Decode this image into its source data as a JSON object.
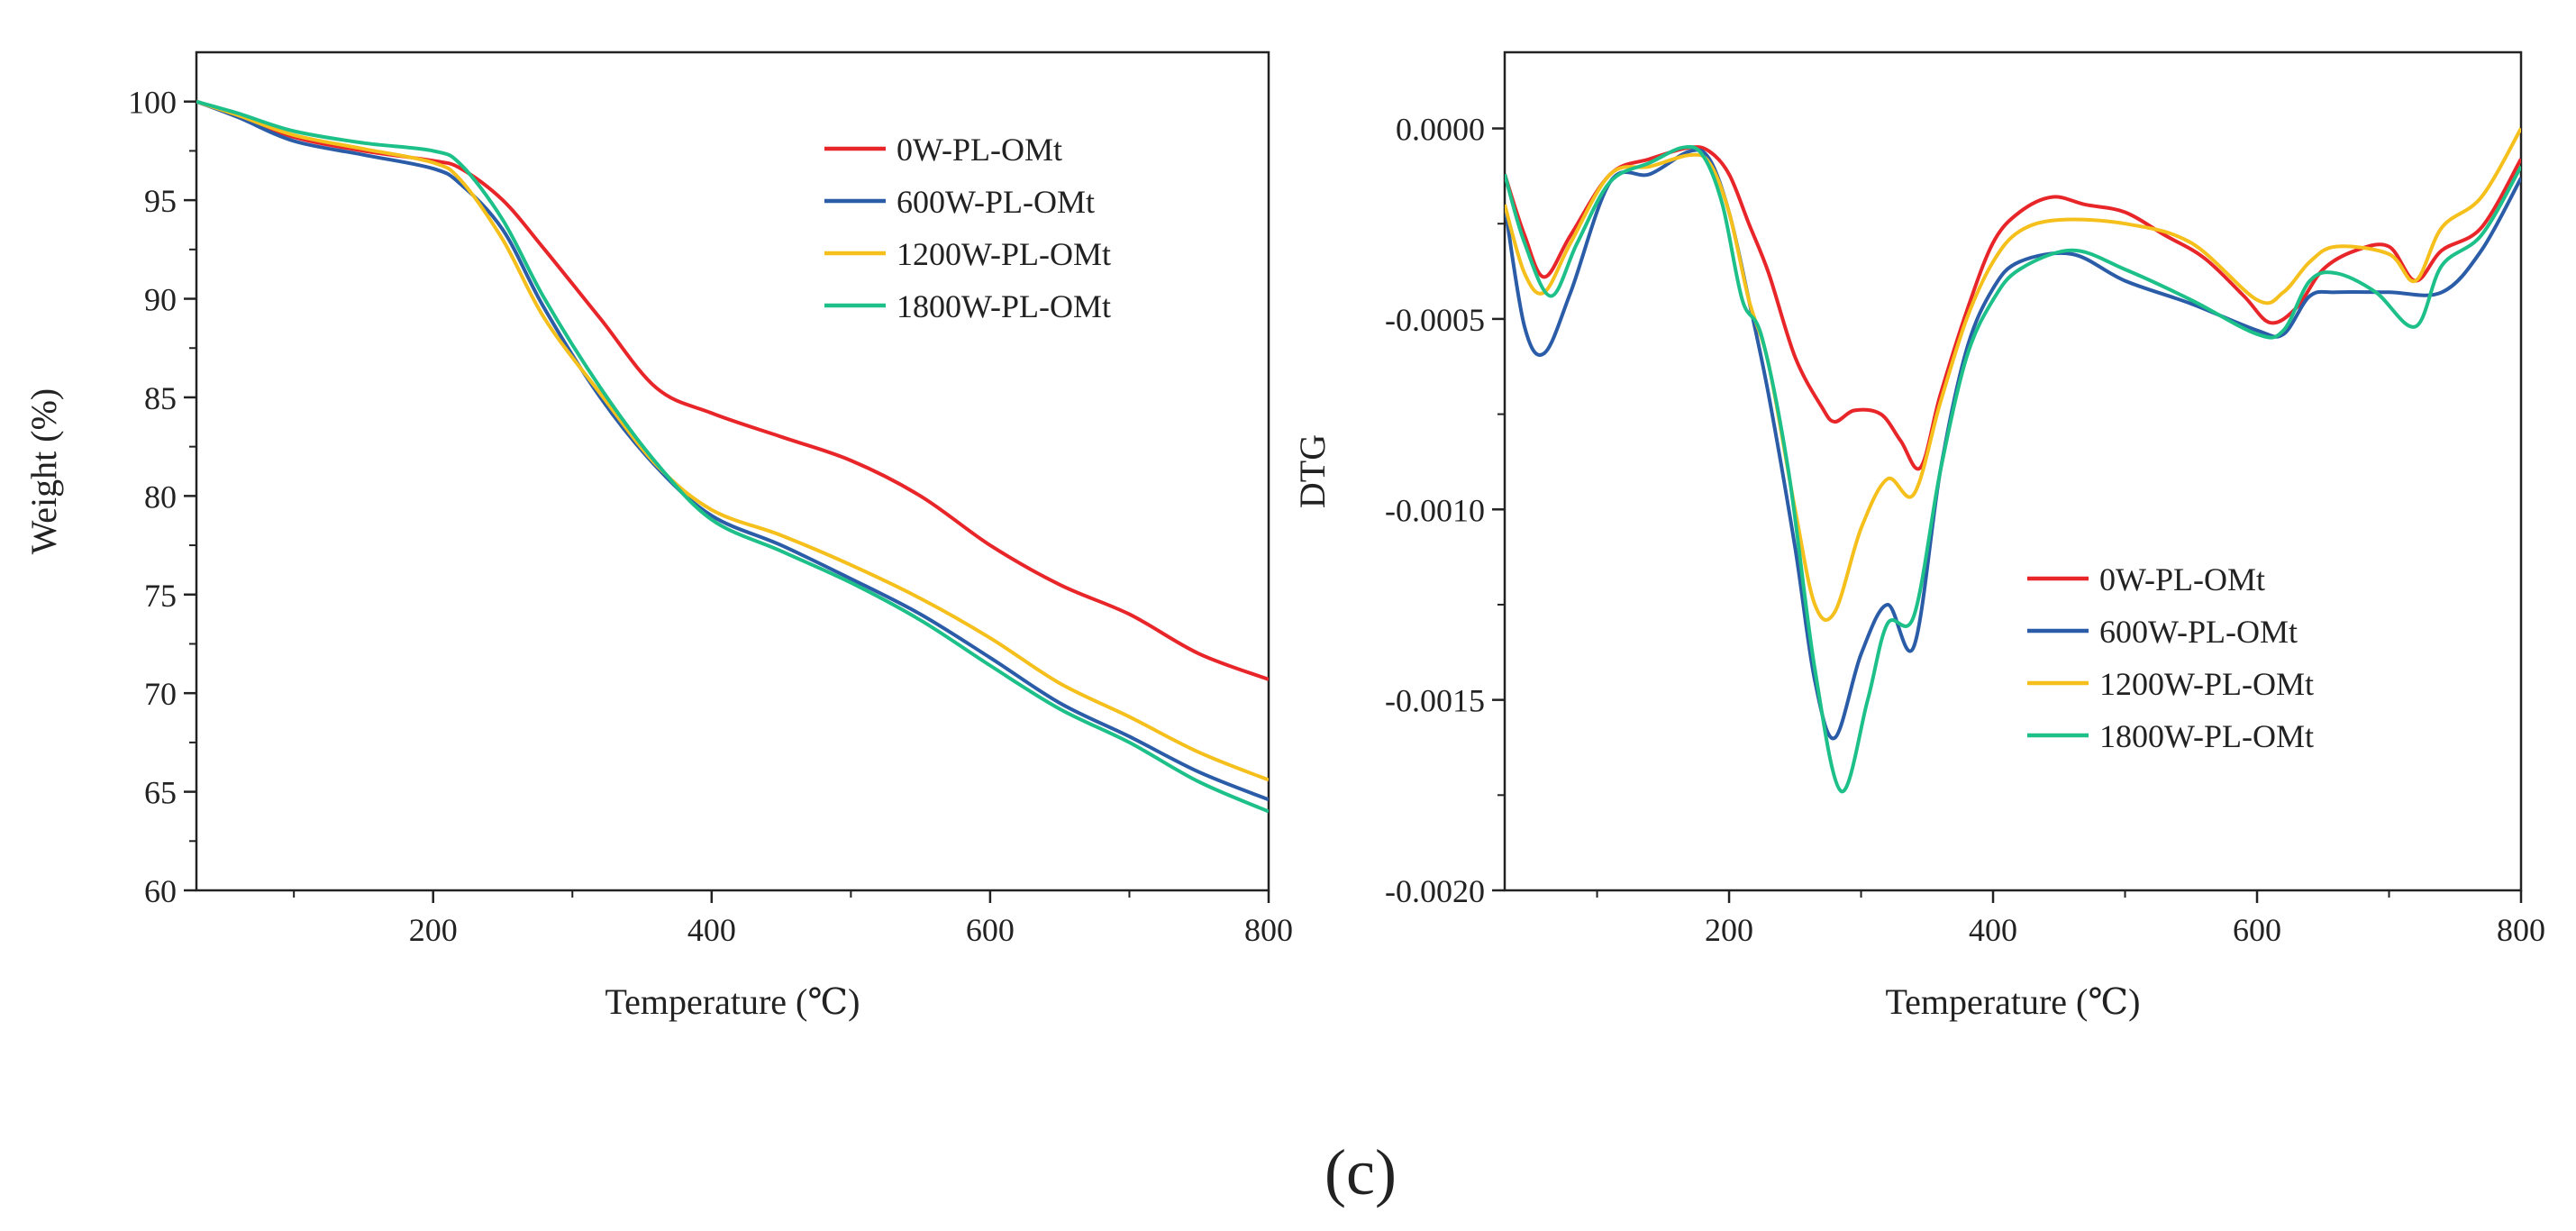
{
  "caption": "(c)",
  "chart_data": [
    {
      "type": "line",
      "xlabel": "Temperature (℃)",
      "ylabel": "Weight (%)",
      "xlim": [
        30,
        800
      ],
      "ylim": [
        60,
        102.5
      ],
      "xticks": [
        200,
        400,
        600,
        800
      ],
      "xtick_labels": [
        "200",
        "400",
        "600",
        "800"
      ],
      "yticks": [
        60,
        65,
        70,
        75,
        80,
        85,
        90,
        95,
        100
      ],
      "ytick_labels": [
        "60",
        "65",
        "70",
        "75",
        "80",
        "85",
        "90",
        "95",
        "100"
      ],
      "legend_position": "top-right",
      "series": [
        {
          "name": "0W-PL-OMt",
          "color": "#e8262a",
          "x": [
            30,
            60,
            100,
            150,
            200,
            220,
            250,
            280,
            320,
            360,
            400,
            450,
            500,
            550,
            600,
            650,
            700,
            750,
            800
          ],
          "y": [
            100,
            99.3,
            98.2,
            97.5,
            97.0,
            96.6,
            95.0,
            92.5,
            89.0,
            85.5,
            84.2,
            83.0,
            81.8,
            80.0,
            77.5,
            75.5,
            74.0,
            72.0,
            70.7
          ]
        },
        {
          "name": "600W-PL-OMt",
          "color": "#2a5ca8",
          "x": [
            30,
            60,
            100,
            150,
            200,
            220,
            250,
            280,
            320,
            360,
            400,
            450,
            500,
            550,
            600,
            650,
            700,
            750,
            800
          ],
          "y": [
            100,
            99.2,
            98.0,
            97.3,
            96.6,
            95.8,
            93.5,
            89.5,
            85.0,
            81.5,
            79.0,
            77.5,
            75.8,
            74.0,
            71.8,
            69.5,
            67.8,
            66.0,
            64.6
          ]
        },
        {
          "name": "1200W-PL-OMt",
          "color": "#f5bf1c",
          "x": [
            30,
            60,
            100,
            150,
            200,
            220,
            250,
            280,
            320,
            360,
            400,
            450,
            500,
            550,
            600,
            650,
            700,
            750,
            800
          ],
          "y": [
            100,
            99.3,
            98.3,
            97.6,
            96.9,
            96.0,
            93.0,
            89.0,
            85.2,
            81.6,
            79.3,
            78.0,
            76.5,
            74.8,
            72.8,
            70.5,
            68.8,
            67.0,
            65.6
          ]
        },
        {
          "name": "1800W-PL-OMt",
          "color": "#1ec089",
          "x": [
            30,
            60,
            100,
            150,
            200,
            220,
            250,
            280,
            320,
            360,
            400,
            450,
            500,
            550,
            600,
            650,
            700,
            750,
            800
          ],
          "y": [
            100,
            99.4,
            98.5,
            97.9,
            97.5,
            96.8,
            94.0,
            90.0,
            85.5,
            81.7,
            78.8,
            77.2,
            75.6,
            73.7,
            71.4,
            69.2,
            67.5,
            65.5,
            64.0
          ]
        }
      ]
    },
    {
      "type": "line",
      "xlabel": "Temperature (℃)",
      "ylabel": "DTG",
      "xlim": [
        30,
        800
      ],
      "ylim": [
        -0.002,
        0.0002
      ],
      "xticks": [
        200,
        400,
        600,
        800
      ],
      "xtick_labels": [
        "200",
        "400",
        "600",
        "800"
      ],
      "yticks": [
        -0.002,
        -0.0015,
        -0.001,
        -0.0005,
        0
      ],
      "ytick_labels": [
        "-0.0020",
        "-0.0015",
        "-0.0010",
        "-0.0005",
        "0.0000"
      ],
      "legend_position": "lower-right",
      "series": [
        {
          "name": "0W-PL-OMt",
          "color": "#e8262a",
          "x": [
            30,
            45,
            60,
            80,
            110,
            140,
            170,
            185,
            200,
            215,
            230,
            250,
            270,
            280,
            295,
            315,
            330,
            345,
            360,
            380,
            400,
            420,
            445,
            470,
            500,
            530,
            560,
            590,
            610,
            630,
            650,
            675,
            700,
            720,
            740,
            770,
            800
          ],
          "y": [
            -0.00012,
            -0.00028,
            -0.00039,
            -0.00028,
            -0.00012,
            -8e-05,
            -5e-05,
            -6e-05,
            -0.00012,
            -0.00025,
            -0.00038,
            -0.0006,
            -0.00073,
            -0.00077,
            -0.00074,
            -0.00075,
            -0.00082,
            -0.00089,
            -0.0007,
            -0.00048,
            -0.0003,
            -0.00022,
            -0.00018,
            -0.0002,
            -0.00022,
            -0.00028,
            -0.00034,
            -0.00044,
            -0.00051,
            -0.00047,
            -0.00037,
            -0.00032,
            -0.00031,
            -0.0004,
            -0.00032,
            -0.00026,
            -8e-05
          ]
        },
        {
          "name": "600W-PL-OMt",
          "color": "#2a5ca8",
          "x": [
            30,
            45,
            60,
            80,
            110,
            140,
            170,
            185,
            200,
            215,
            230,
            250,
            265,
            280,
            300,
            320,
            340,
            360,
            380,
            400,
            420,
            460,
            500,
            550,
            600,
            620,
            640,
            660,
            700,
            740,
            770,
            800
          ],
          "y": [
            -0.0002,
            -0.00052,
            -0.00059,
            -0.00043,
            -0.00014,
            -0.00012,
            -6e-05,
            -8e-05,
            -0.00022,
            -0.00045,
            -0.0007,
            -0.0011,
            -0.00145,
            -0.0016,
            -0.00138,
            -0.00125,
            -0.00136,
            -0.0009,
            -0.00058,
            -0.00042,
            -0.00035,
            -0.00033,
            -0.0004,
            -0.00046,
            -0.00053,
            -0.00054,
            -0.00044,
            -0.00043,
            -0.00043,
            -0.00043,
            -0.00032,
            -0.00013
          ]
        },
        {
          "name": "1200W-PL-OMt",
          "color": "#f5bf1c",
          "x": [
            30,
            45,
            60,
            80,
            110,
            140,
            170,
            185,
            200,
            215,
            230,
            250,
            265,
            280,
            300,
            320,
            340,
            360,
            380,
            400,
            420,
            450,
            500,
            550,
            600,
            620,
            640,
            660,
            700,
            720,
            740,
            770,
            800
          ],
          "y": [
            -0.0002,
            -0.00038,
            -0.00043,
            -0.0003,
            -0.00012,
            -0.0001,
            -7e-05,
            -9e-05,
            -0.00022,
            -0.00045,
            -0.00062,
            -0.001,
            -0.00125,
            -0.00127,
            -0.00105,
            -0.00092,
            -0.00096,
            -0.00072,
            -0.0005,
            -0.00035,
            -0.00027,
            -0.00024,
            -0.00025,
            -0.0003,
            -0.00045,
            -0.00043,
            -0.00035,
            -0.00031,
            -0.00033,
            -0.0004,
            -0.00026,
            -0.00018,
            0.0
          ]
        },
        {
          "name": "1800W-PL-OMt",
          "color": "#1ec089",
          "x": [
            30,
            45,
            65,
            85,
            110,
            140,
            165,
            180,
            195,
            210,
            225,
            245,
            265,
            285,
            305,
            320,
            340,
            360,
            380,
            400,
            420,
            460,
            500,
            550,
            600,
            620,
            640,
            660,
            690,
            720,
            740,
            770,
            800
          ],
          "y": [
            -0.00012,
            -0.0003,
            -0.00044,
            -0.0003,
            -0.00014,
            -9e-05,
            -5e-05,
            -7e-05,
            -0.0002,
            -0.00045,
            -0.00055,
            -0.0009,
            -0.00142,
            -0.00174,
            -0.0015,
            -0.0013,
            -0.00128,
            -0.0009,
            -0.0006,
            -0.00045,
            -0.00037,
            -0.00032,
            -0.00037,
            -0.00045,
            -0.00054,
            -0.00053,
            -0.0004,
            -0.00038,
            -0.00043,
            -0.00052,
            -0.00036,
            -0.00028,
            -0.0001
          ]
        }
      ]
    }
  ]
}
